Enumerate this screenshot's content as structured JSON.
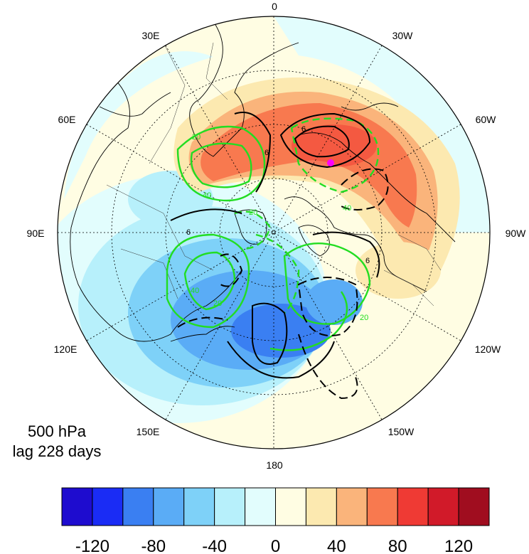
{
  "caption": {
    "level": "500 hPa",
    "lag": "lag 228 days"
  },
  "longitude_labels": {
    "n0": "0",
    "e30": "30E",
    "w30": "30W",
    "e60": "60E",
    "w60": "60W",
    "e90": "90E",
    "w90": "90W",
    "e120": "120E",
    "w120": "120W",
    "e150": "150E",
    "w150": "150W",
    "s180": "180"
  },
  "contour_labels": {
    "c1": "6",
    "c2": "6",
    "c3": "6",
    "c4": "6",
    "c5": "20",
    "c6": "40",
    "c7": "20",
    "c8": "20",
    "c9": "40",
    "c10": "40",
    "c11": "20"
  },
  "colorbar": {
    "colors": [
      "#1e0ccf",
      "#1a2cf5",
      "#3a7ff2",
      "#5aacf6",
      "#7ed1f8",
      "#b7f0fb",
      "#e2fdfd",
      "#fffde3",
      "#fce9b0",
      "#fab47b",
      "#f8794f",
      "#ef3a34",
      "#d11a29",
      "#a00d1f"
    ],
    "tick_labels": [
      "-120",
      "-80",
      "-40",
      "0",
      "40",
      "80",
      "120"
    ]
  },
  "marker": {
    "color": "#ff00ff"
  }
}
